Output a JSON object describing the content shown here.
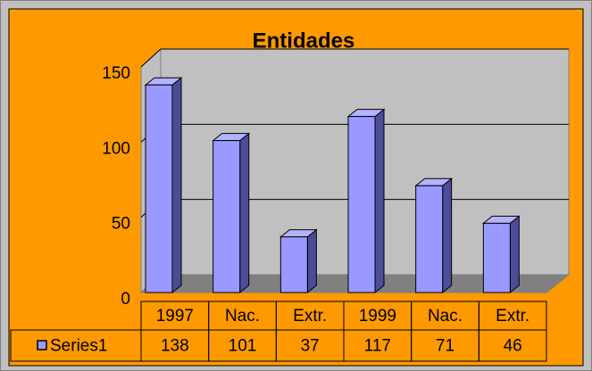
{
  "chart_data": {
    "type": "bar",
    "title": "Entidades",
    "categories": [
      "1997",
      "Nac.",
      "Extr.",
      "1999",
      "Nac.",
      "Extr."
    ],
    "series": [
      {
        "name": "Series1",
        "color": "#9999ff",
        "values": [
          138,
          101,
          37,
          117,
          71,
          46
        ]
      }
    ],
    "ylim": [
      0,
      150
    ],
    "yticks": [
      0,
      50,
      100,
      150
    ],
    "grid": true
  }
}
